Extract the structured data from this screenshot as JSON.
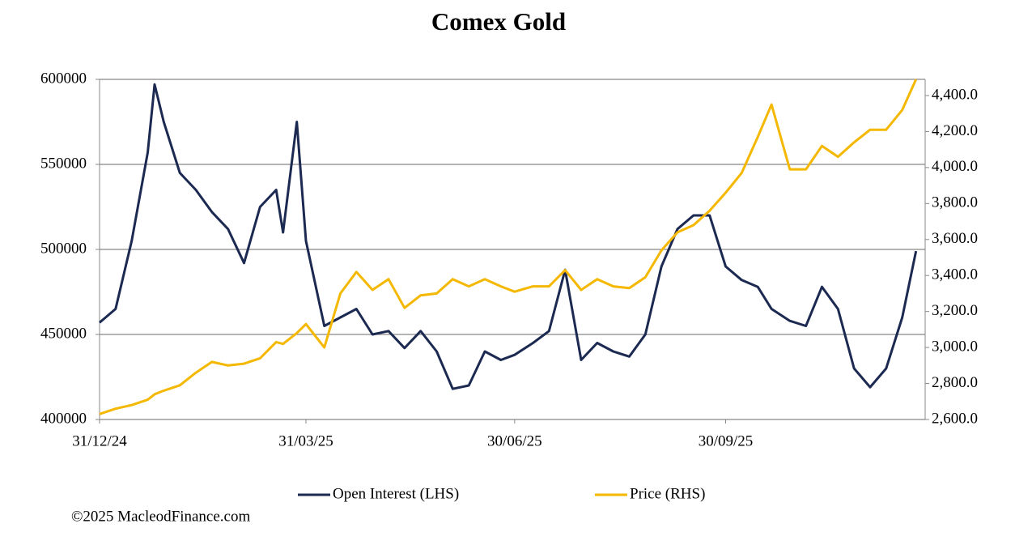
{
  "chart_data": {
    "type": "line",
    "title": "Comex Gold",
    "x": [
      "31/12/24",
      "07/01/25",
      "14/01/25",
      "21/01/25",
      "24/01/25",
      "28/01/25",
      "04/02/25",
      "11/02/25",
      "18/02/25",
      "25/02/25",
      "04/03/25",
      "11/03/25",
      "18/03/25",
      "21/03/25",
      "27/03/25",
      "31/03/25",
      "08/04/25",
      "15/04/25",
      "22/04/25",
      "29/04/25",
      "06/05/25",
      "13/05/25",
      "20/05/25",
      "27/05/25",
      "03/06/25",
      "10/06/25",
      "17/06/25",
      "24/06/25",
      "30/06/25",
      "08/07/25",
      "15/07/25",
      "22/07/25",
      "29/07/25",
      "05/08/25",
      "12/08/25",
      "19/08/25",
      "26/08/25",
      "02/09/25",
      "09/09/25",
      "16/09/25",
      "23/09/25",
      "30/09/25",
      "07/10/25",
      "14/10/25",
      "20/10/25",
      "28/10/25",
      "04/11/25",
      "11/11/25",
      "18/11/25",
      "25/11/25",
      "02/12/25",
      "09/12/25",
      "16/12/25",
      "22/12/25"
    ],
    "xlim": [
      "31/12/24",
      "26/12/25"
    ],
    "xticks": [
      "31/12/24",
      "31/03/25",
      "30/06/25",
      "30/09/25"
    ],
    "ylim": [
      400000,
      600000
    ],
    "yticks": [
      400000,
      450000,
      500000,
      550000,
      600000
    ],
    "y2lim": [
      2600,
      4490
    ],
    "y2ticks": [
      {
        "value": 2600,
        "label": "2,600.0"
      },
      {
        "value": 2800,
        "label": "2,800.0"
      },
      {
        "value": 3000,
        "label": "3,000.0"
      },
      {
        "value": 3200,
        "label": "3,200.0"
      },
      {
        "value": 3400,
        "label": "3,400.0"
      },
      {
        "value": 3600,
        "label": "3,600.0"
      },
      {
        "value": 3800,
        "label": "3,800.0"
      },
      {
        "value": 4000,
        "label": "4,000.0"
      },
      {
        "value": 4200,
        "label": "4,200.0"
      },
      {
        "value": 4400,
        "label": "4,400.0"
      }
    ],
    "grid": true,
    "legend": "bottom",
    "series": [
      {
        "name": "Open Interest (LHS)",
        "color": "#1c2a52",
        "values": [
          457000,
          465000,
          505000,
          557000,
          597000,
          575000,
          545000,
          535000,
          522000,
          512000,
          492000,
          525000,
          535000,
          510000,
          575000,
          505000,
          455000,
          460000,
          465000,
          450000,
          452000,
          442000,
          452000,
          440000,
          418000,
          420000,
          440000,
          435000,
          438000,
          445000,
          452000,
          488000,
          435000,
          445000,
          440000,
          437000,
          450000,
          490000,
          512000,
          520000,
          520000,
          490000,
          482000,
          478000,
          465000,
          458000,
          455000,
          478000,
          465000,
          430000,
          419000,
          430000,
          460000,
          499000
        ]
      },
      {
        "name": "Price (RHS)",
        "color": "#f5b800",
        "axis": "y2",
        "values": [
          2630,
          2660,
          2680,
          2710,
          2740,
          2760,
          2790,
          2860,
          2920,
          2900,
          2910,
          2940,
          3030,
          3020,
          3080,
          3130,
          3000,
          3300,
          3420,
          3320,
          3380,
          3220,
          3290,
          3300,
          3380,
          3340,
          3380,
          3340,
          3310,
          3340,
          3340,
          3430,
          3320,
          3380,
          3340,
          3330,
          3390,
          3540,
          3640,
          3680,
          3760,
          3860,
          3970,
          4170,
          4350,
          3990,
          3990,
          4120,
          4060,
          4140,
          4210,
          4210,
          4320,
          4490
        ]
      }
    ]
  },
  "footer": "©2025 MacleodFinance.com"
}
